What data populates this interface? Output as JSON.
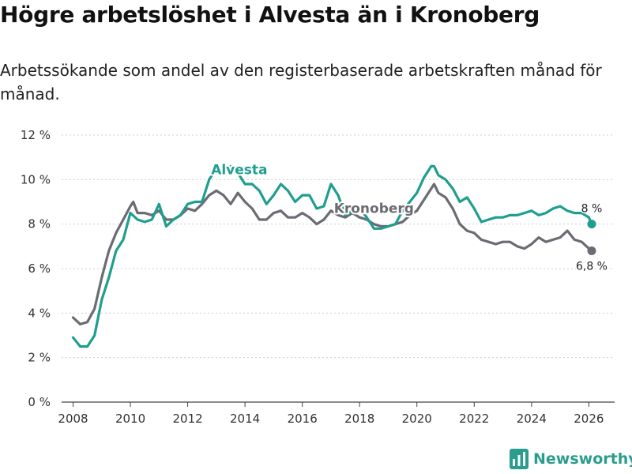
{
  "title": "Högre arbetslöshet i Alvesta än i Kronoberg",
  "subtitle": "Arbetssökande som andel av den registerbaserade arbetskraften månad för månad.",
  "brand": {
    "name": "Newsworthy",
    "color": "#2a9d8f"
  },
  "chart_data": {
    "type": "line",
    "title": "Högre arbetslöshet i Alvesta än i Kronoberg",
    "xlabel": "",
    "ylabel": "",
    "xlim": [
      2007.6,
      2026.9
    ],
    "ylim": [
      0,
      12
    ],
    "xticks": [
      2008,
      2010,
      2012,
      2014,
      2016,
      2018,
      2020,
      2022,
      2024,
      2026
    ],
    "yticks": [
      0,
      2,
      4,
      6,
      8,
      10,
      12
    ],
    "ytick_labels": [
      "0 %",
      "2 %",
      "4 %",
      "6 %",
      "8 %",
      "10 %",
      "12 %"
    ],
    "grid": true,
    "series": [
      {
        "name": "Kronoberg",
        "color": "#6b6b73",
        "end_label": "6,8 %",
        "x": [
          2008.0,
          2008.25,
          2008.5,
          2008.75,
          2009.0,
          2009.25,
          2009.5,
          2009.75,
          2010.0,
          2010.1,
          2010.25,
          2010.5,
          2010.75,
          2011.0,
          2011.25,
          2011.5,
          2011.75,
          2012.0,
          2012.25,
          2012.5,
          2012.75,
          2013.0,
          2013.25,
          2013.5,
          2013.75,
          2014.0,
          2014.25,
          2014.5,
          2014.75,
          2015.0,
          2015.25,
          2015.5,
          2015.75,
          2016.0,
          2016.25,
          2016.5,
          2016.75,
          2017.0,
          2017.25,
          2017.5,
          2017.75,
          2018.0,
          2018.25,
          2018.5,
          2018.75,
          2019.0,
          2019.25,
          2019.5,
          2019.75,
          2020.0,
          2020.25,
          2020.5,
          2020.6,
          2020.75,
          2021.0,
          2021.25,
          2021.5,
          2021.75,
          2022.0,
          2022.25,
          2022.5,
          2022.75,
          2023.0,
          2023.25,
          2023.5,
          2023.75,
          2024.0,
          2024.25,
          2024.5,
          2024.75,
          2025.0,
          2025.25,
          2025.5,
          2025.75,
          2026.0,
          2026.1
        ],
        "values": [
          3.8,
          3.5,
          3.6,
          4.2,
          5.6,
          6.8,
          7.6,
          8.2,
          8.8,
          9.0,
          8.5,
          8.5,
          8.4,
          8.6,
          8.2,
          8.2,
          8.4,
          8.7,
          8.6,
          8.9,
          9.3,
          9.5,
          9.3,
          8.9,
          9.4,
          9.0,
          8.7,
          8.2,
          8.2,
          8.5,
          8.6,
          8.3,
          8.3,
          8.5,
          8.3,
          8.0,
          8.2,
          8.6,
          8.4,
          8.3,
          8.5,
          8.3,
          8.2,
          8.0,
          7.9,
          7.9,
          8.0,
          8.1,
          8.4,
          8.6,
          9.1,
          9.6,
          9.8,
          9.4,
          9.2,
          8.7,
          8.0,
          7.7,
          7.6,
          7.3,
          7.2,
          7.1,
          7.2,
          7.2,
          7.0,
          6.9,
          7.1,
          7.4,
          7.2,
          7.3,
          7.4,
          7.7,
          7.3,
          7.2,
          6.9,
          6.8
        ]
      },
      {
        "name": "Alvesta",
        "color": "#1f9e8f",
        "end_label": "8 %",
        "x": [
          2008.0,
          2008.25,
          2008.5,
          2008.75,
          2009.0,
          2009.25,
          2009.5,
          2009.75,
          2010.0,
          2010.25,
          2010.5,
          2010.75,
          2011.0,
          2011.25,
          2011.5,
          2011.75,
          2012.0,
          2012.25,
          2012.5,
          2012.75,
          2013.0,
          2013.25,
          2013.5,
          2013.75,
          2014.0,
          2014.25,
          2014.5,
          2014.75,
          2015.0,
          2015.25,
          2015.5,
          2015.75,
          2016.0,
          2016.25,
          2016.5,
          2016.75,
          2017.0,
          2017.25,
          2017.5,
          2017.75,
          2018.0,
          2018.25,
          2018.5,
          2018.75,
          2019.0,
          2019.25,
          2019.5,
          2019.75,
          2020.0,
          2020.25,
          2020.5,
          2020.6,
          2020.75,
          2021.0,
          2021.25,
          2021.5,
          2021.75,
          2022.0,
          2022.25,
          2022.5,
          2022.75,
          2023.0,
          2023.25,
          2023.5,
          2023.75,
          2024.0,
          2024.25,
          2024.5,
          2024.75,
          2025.0,
          2025.25,
          2025.5,
          2025.75,
          2026.0,
          2026.1
        ],
        "values": [
          2.9,
          2.5,
          2.5,
          3.0,
          4.6,
          5.6,
          6.8,
          7.3,
          8.5,
          8.2,
          8.1,
          8.2,
          8.9,
          7.9,
          8.2,
          8.4,
          8.9,
          9.0,
          9.0,
          10.0,
          10.5,
          10.3,
          10.6,
          10.3,
          9.8,
          9.8,
          9.5,
          8.9,
          9.3,
          9.8,
          9.5,
          9.0,
          9.3,
          9.3,
          8.7,
          8.8,
          9.8,
          9.3,
          8.4,
          8.6,
          8.7,
          8.3,
          7.8,
          7.8,
          7.9,
          8.0,
          8.6,
          9.0,
          9.4,
          10.1,
          10.6,
          10.6,
          10.2,
          10.0,
          9.6,
          9.0,
          9.2,
          8.7,
          8.1,
          8.2,
          8.3,
          8.3,
          8.4,
          8.4,
          8.5,
          8.6,
          8.4,
          8.5,
          8.7,
          8.8,
          8.6,
          8.5,
          8.5,
          8.3,
          8.0
        ]
      }
    ]
  }
}
